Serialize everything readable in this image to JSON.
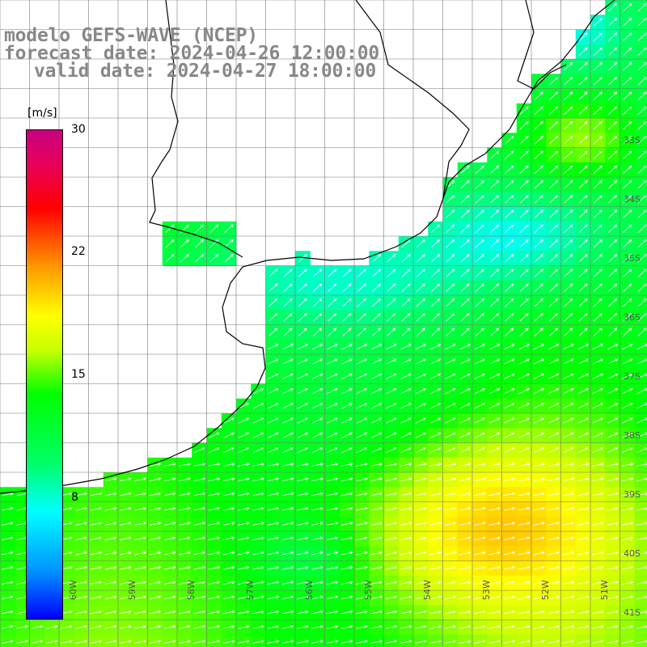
{
  "title": {
    "line1": "modelo GEFS-WAVE (NCEP)",
    "line2": "forecast date: 2024-04-26 12:00:00",
    "line3": "valid date: 2024-04-27 18:00:00"
  },
  "colorbar": {
    "unit": "[m/s]",
    "ticks": [
      "8",
      "15",
      "22",
      "30"
    ],
    "min": 0,
    "max": 30
  },
  "longitude_labels": [
    "60W",
    "59W",
    "58W",
    "57W",
    "56W",
    "55W",
    "54W",
    "53W",
    "52W",
    "51W"
  ],
  "latitude_labels": [
    "33S",
    "34S",
    "35S",
    "36S",
    "37S",
    "38S",
    "39S",
    "40S",
    "41S"
  ],
  "colors": {
    "land": "#ffffff",
    "grid": "#777777",
    "coast": "#000000",
    "arrows": "#ffffff"
  }
}
